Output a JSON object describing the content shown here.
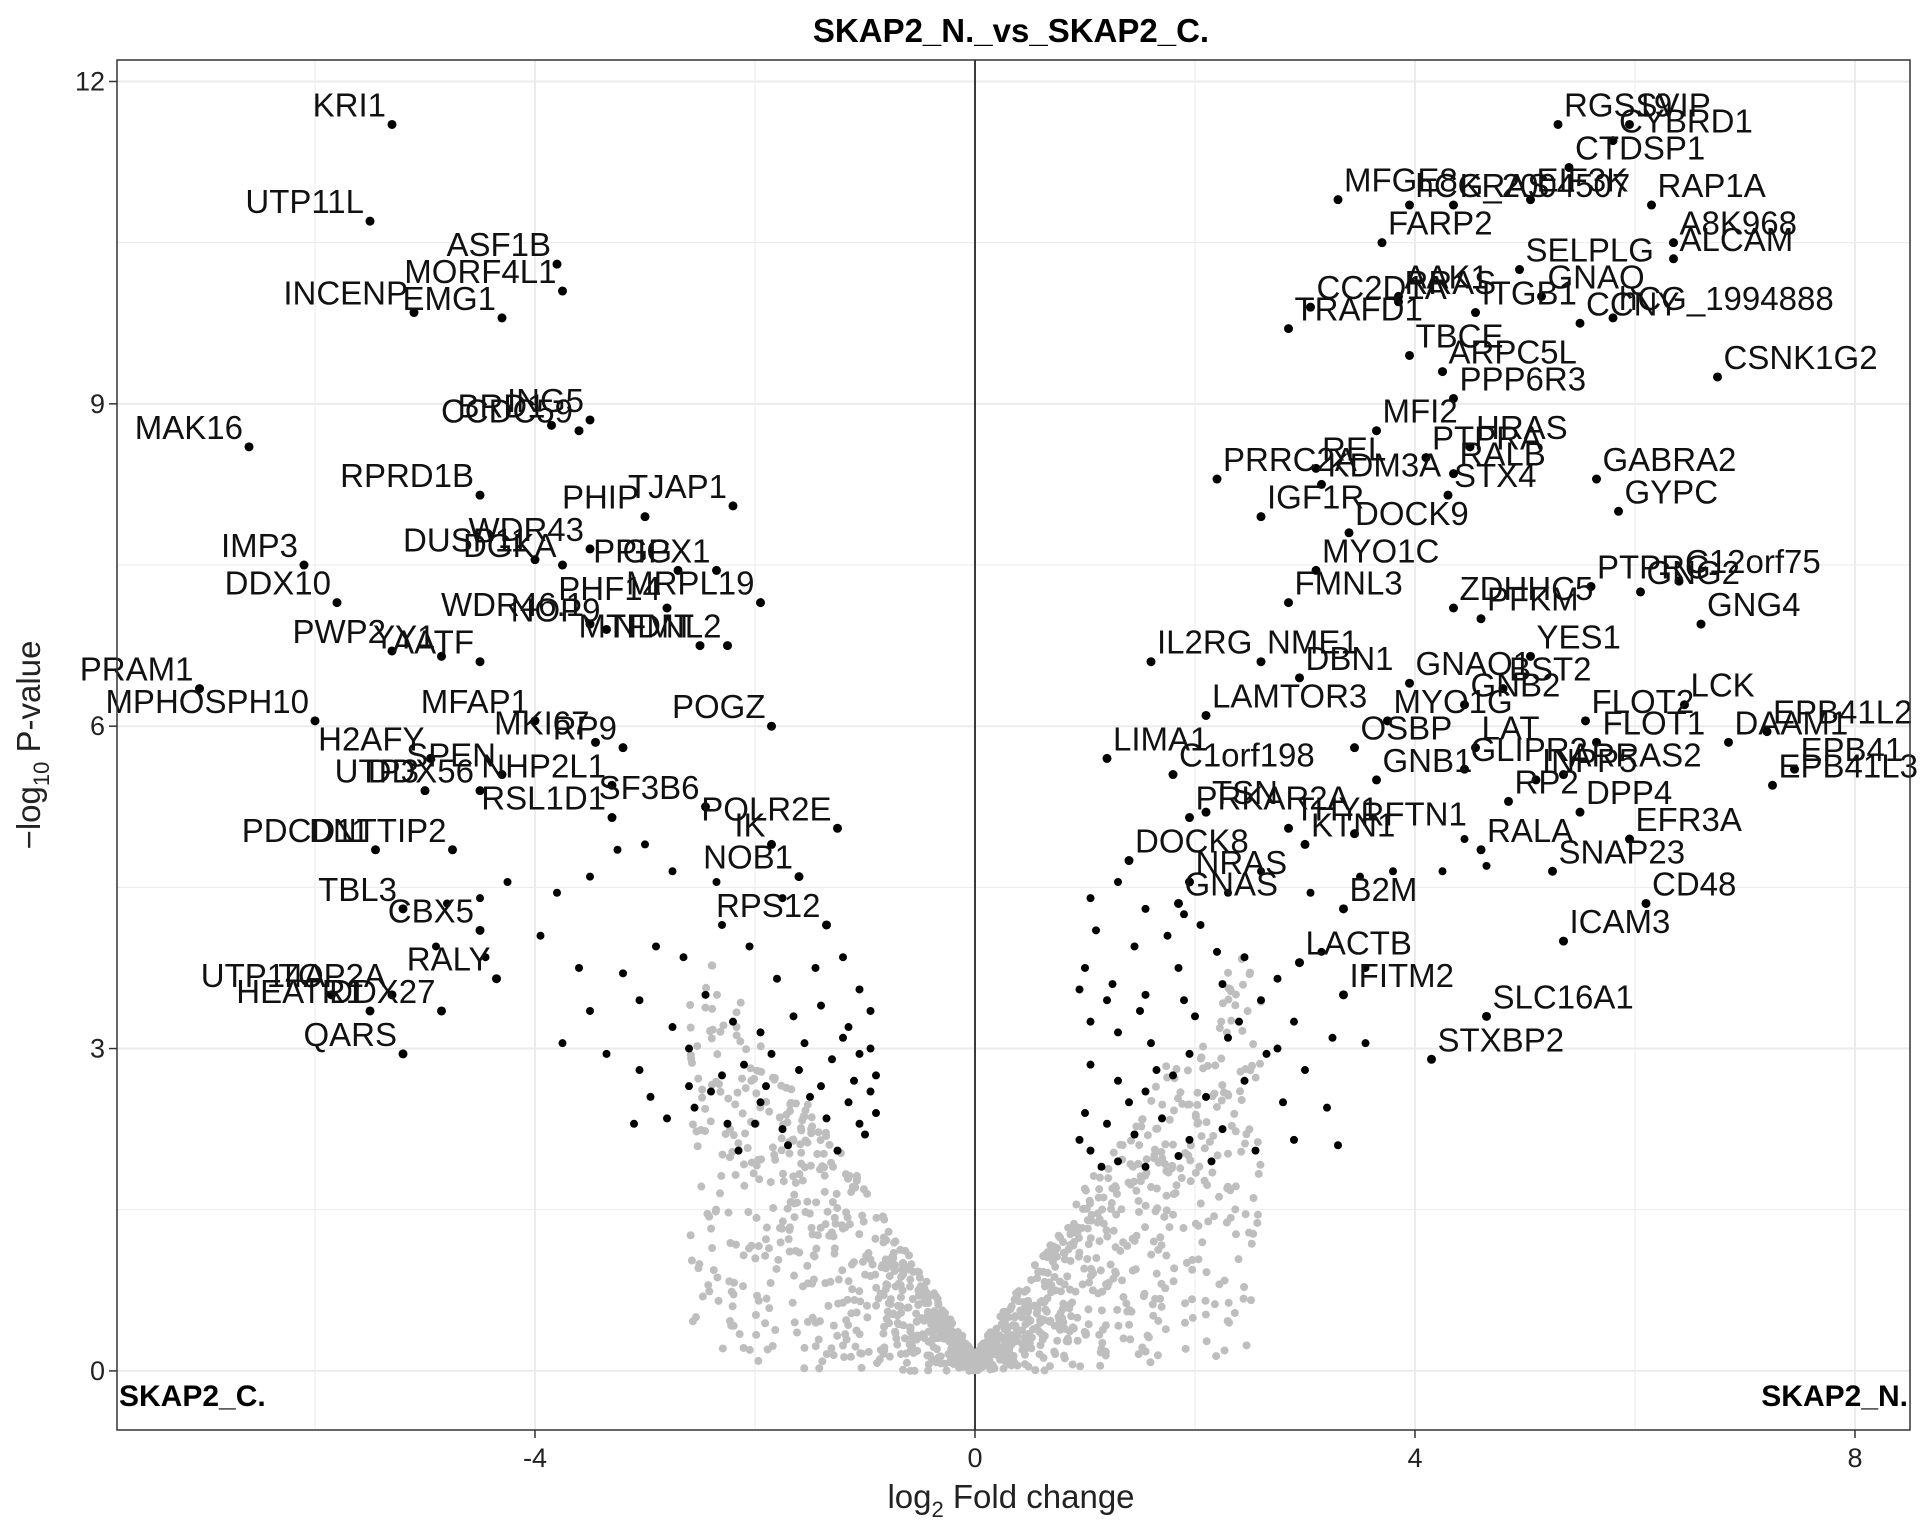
{
  "chart_data": {
    "type": "scatter",
    "title": "SKAP2_N._vs_SKAP2_C.",
    "xlabel_parts": [
      "log",
      "2",
      " Fold change"
    ],
    "ylabel_parts": [
      "−log",
      "10",
      " P-value"
    ],
    "xlim": [
      -7.8,
      8.5
    ],
    "ylim": [
      -0.55,
      12.2
    ],
    "x_ticks": [
      -4,
      0,
      4,
      8
    ],
    "x_tick_labels": [
      "-4",
      "0",
      "4",
      "8"
    ],
    "y_ticks": [
      0,
      3,
      6,
      9,
      12
    ],
    "y_tick_labels": [
      "0",
      "3",
      "6",
      "9",
      "12"
    ],
    "grid": true,
    "theme": "bw",
    "corner_labels": {
      "left": "SKAP2_C.",
      "right": "SKAP2_N."
    },
    "colors": {
      "significant": "#000000",
      "nonsignificant": "#bebebe",
      "grid": "#ebebeb",
      "frame": "#333333"
    },
    "labeled_points": [
      {
        "gene": "KRI1",
        "x": -5.3,
        "y": 11.6
      },
      {
        "gene": "UTP11L",
        "x": -5.5,
        "y": 10.7
      },
      {
        "gene": "ASF1B",
        "x": -3.8,
        "y": 10.3
      },
      {
        "gene": "MORF4L1",
        "x": -3.75,
        "y": 10.05
      },
      {
        "gene": "INCENP",
        "x": -5.1,
        "y": 9.85
      },
      {
        "gene": "EMG1",
        "x": -4.3,
        "y": 9.8
      },
      {
        "gene": "BRD1",
        "x": -3.85,
        "y": 8.8
      },
      {
        "gene": "ING5",
        "x": -3.5,
        "y": 8.85
      },
      {
        "gene": "CCDC59",
        "x": -3.6,
        "y": 8.75
      },
      {
        "gene": "MAK16",
        "x": -6.6,
        "y": 8.6
      },
      {
        "gene": "PHIP",
        "x": -3.0,
        "y": 7.95
      },
      {
        "gene": "TJAP1",
        "x": -2.2,
        "y": 8.05
      },
      {
        "gene": "RPRD1B",
        "x": -4.5,
        "y": 8.15
      },
      {
        "gene": "PPIG",
        "x": -2.7,
        "y": 7.45
      },
      {
        "gene": "DUSP11",
        "x": -4.0,
        "y": 7.55
      },
      {
        "gene": "IMP3",
        "x": -6.1,
        "y": 7.5
      },
      {
        "gene": "DGKA",
        "x": -3.75,
        "y": 7.5
      },
      {
        "gene": "GPX1",
        "x": -2.35,
        "y": 7.45
      },
      {
        "gene": "WDR43",
        "x": -3.5,
        "y": 7.65
      },
      {
        "gene": "DDX10",
        "x": -5.8,
        "y": 7.15
      },
      {
        "gene": "MRPL19",
        "x": -1.95,
        "y": 7.15
      },
      {
        "gene": "PHF14",
        "x": -2.8,
        "y": 7.1
      },
      {
        "gene": "MTFMT",
        "x": -2.5,
        "y": 6.75
      },
      {
        "gene": "PWP2",
        "x": -5.3,
        "y": 6.7
      },
      {
        "gene": "WDR46.1",
        "x": -3.5,
        "y": 6.95
      },
      {
        "gene": "YY1",
        "x": -4.85,
        "y": 6.65
      },
      {
        "gene": "NOP9",
        "x": -3.35,
        "y": 6.9
      },
      {
        "gene": "NDNL2",
        "x": -2.25,
        "y": 6.75
      },
      {
        "gene": "PRAM1",
        "x": -7.05,
        "y": 6.35
      },
      {
        "gene": "AATF",
        "x": -4.5,
        "y": 6.6
      },
      {
        "gene": "MPHOSPH10",
        "x": -6.0,
        "y": 6.05
      },
      {
        "gene": "MFAP1",
        "x": -4.0,
        "y": 6.05
      },
      {
        "gene": "MKI67",
        "x": -3.45,
        "y": 5.85
      },
      {
        "gene": "POGZ",
        "x": -1.85,
        "y": 6.0
      },
      {
        "gene": "H2AFY",
        "x": -4.95,
        "y": 5.7
      },
      {
        "gene": "RP9",
        "x": -3.2,
        "y": 5.8
      },
      {
        "gene": "SPEN",
        "x": -4.3,
        "y": 5.55
      },
      {
        "gene": "NHP2L1",
        "x": -3.3,
        "y": 5.45
      },
      {
        "gene": "UTP3",
        "x": -5.0,
        "y": 5.4
      },
      {
        "gene": "DDX56",
        "x": -4.5,
        "y": 5.4
      },
      {
        "gene": "RSL1D1",
        "x": -3.3,
        "y": 5.15
      },
      {
        "gene": "SF3B6",
        "x": -2.45,
        "y": 5.25
      },
      {
        "gene": "POLR2E",
        "x": -1.25,
        "y": 5.05
      },
      {
        "gene": "PDCD11",
        "x": -5.45,
        "y": 4.85
      },
      {
        "gene": "DNTTIP2",
        "x": -4.75,
        "y": 4.85
      },
      {
        "gene": "IK",
        "x": -1.85,
        "y": 4.9
      },
      {
        "gene": "NOB1",
        "x": -1.6,
        "y": 4.6
      },
      {
        "gene": "TBL3",
        "x": -5.2,
        "y": 4.3
      },
      {
        "gene": "CBX5",
        "x": -4.5,
        "y": 4.1
      },
      {
        "gene": "RPS12",
        "x": -1.35,
        "y": 4.15
      },
      {
        "gene": "UTP14A",
        "x": -5.85,
        "y": 3.5
      },
      {
        "gene": "TOP2A",
        "x": -5.3,
        "y": 3.5
      },
      {
        "gene": "RALY",
        "x": -4.35,
        "y": 3.65
      },
      {
        "gene": "HEATR1",
        "x": -5.5,
        "y": 3.35
      },
      {
        "gene": "DDX27",
        "x": -4.85,
        "y": 3.35
      },
      {
        "gene": "QARS",
        "x": -5.2,
        "y": 2.95
      },
      {
        "gene": "RGS19",
        "x": 5.3,
        "y": 11.6
      },
      {
        "gene": "SVIP",
        "x": 5.95,
        "y": 11.6
      },
      {
        "gene": "CTDSP1",
        "x": 5.4,
        "y": 11.2
      },
      {
        "gene": "CYBRD1",
        "x": 5.8,
        "y": 11.45
      },
      {
        "gene": "MFGE8",
        "x": 3.3,
        "y": 10.9
      },
      {
        "gene": "hCG_2004507",
        "x": 3.95,
        "y": 10.85
      },
      {
        "gene": "EIF3K",
        "x": 5.05,
        "y": 10.9
      },
      {
        "gene": "RAP1A",
        "x": 6.15,
        "y": 10.85
      },
      {
        "gene": "FARP2",
        "x": 3.7,
        "y": 10.5
      },
      {
        "gene": "KRAS",
        "x": 4.35,
        "y": 10.85
      },
      {
        "gene": "A8K968",
        "x": 6.35,
        "y": 10.5
      },
      {
        "gene": "SELPLG",
        "x": 4.95,
        "y": 10.25
      },
      {
        "gene": "AAK1",
        "x": 3.85,
        "y": 10.0
      },
      {
        "gene": "ALCAM",
        "x": 6.35,
        "y": 10.35
      },
      {
        "gene": "GNAQ",
        "x": 5.15,
        "y": 10.0
      },
      {
        "gene": "CC2D1A",
        "x": 3.05,
        "y": 9.9
      },
      {
        "gene": "RRAS",
        "x": 3.85,
        "y": 9.95
      },
      {
        "gene": "ITGB1",
        "x": 4.55,
        "y": 9.85
      },
      {
        "gene": "hCG_1994888",
        "x": 5.8,
        "y": 9.8
      },
      {
        "gene": "TRAFD1",
        "x": 2.85,
        "y": 9.7
      },
      {
        "gene": "CCNY",
        "x": 5.5,
        "y": 9.75
      },
      {
        "gene": "TBCE",
        "x": 3.95,
        "y": 9.45
      },
      {
        "gene": "ARPC5L",
        "x": 4.25,
        "y": 9.3
      },
      {
        "gene": "CSNK1G2",
        "x": 6.75,
        "y": 9.25
      },
      {
        "gene": "MFI2",
        "x": 3.65,
        "y": 8.75
      },
      {
        "gene": "PPP6R3",
        "x": 4.35,
        "y": 9.05
      },
      {
        "gene": "HRAS",
        "x": 4.5,
        "y": 8.6
      },
      {
        "gene": "REL",
        "x": 3.1,
        "y": 8.4
      },
      {
        "gene": "PTPRA",
        "x": 4.1,
        "y": 8.5
      },
      {
        "gene": "RALB",
        "x": 4.35,
        "y": 8.35
      },
      {
        "gene": "GABRA2",
        "x": 5.65,
        "y": 8.3
      },
      {
        "gene": "PRRC2A",
        "x": 2.2,
        "y": 8.3
      },
      {
        "gene": "KDM3A",
        "x": 3.15,
        "y": 8.25
      },
      {
        "gene": "STX4",
        "x": 4.3,
        "y": 8.15
      },
      {
        "gene": "GYPC",
        "x": 5.85,
        "y": 8.0
      },
      {
        "gene": "IGF1R",
        "x": 2.6,
        "y": 7.95
      },
      {
        "gene": "DOCK9",
        "x": 3.4,
        "y": 7.8
      },
      {
        "gene": "PTPRG",
        "x": 5.6,
        "y": 7.3
      },
      {
        "gene": "C12orf75",
        "x": 6.4,
        "y": 7.35
      },
      {
        "gene": "FMNL3",
        "x": 2.85,
        "y": 7.15
      },
      {
        "gene": "MYO1C",
        "x": 3.1,
        "y": 7.45
      },
      {
        "gene": "GNG2",
        "x": 6.05,
        "y": 7.25
      },
      {
        "gene": "PFKM",
        "x": 4.6,
        "y": 7.0
      },
      {
        "gene": "GNG4",
        "x": 6.6,
        "y": 6.95
      },
      {
        "gene": "ZDHHC5",
        "x": 4.35,
        "y": 7.1
      },
      {
        "gene": "NME1",
        "x": 2.6,
        "y": 6.6
      },
      {
        "gene": "YES1",
        "x": 5.05,
        "y": 6.65
      },
      {
        "gene": "GNAO1",
        "x": 3.95,
        "y": 6.4
      },
      {
        "gene": "BST2",
        "x": 4.8,
        "y": 6.35
      },
      {
        "gene": "LCK",
        "x": 6.45,
        "y": 6.2
      },
      {
        "gene": "IL2RG",
        "x": 1.6,
        "y": 6.6
      },
      {
        "gene": "DBN1",
        "x": 2.95,
        "y": 6.45
      },
      {
        "gene": "FLOT2",
        "x": 5.55,
        "y": 6.05
      },
      {
        "gene": "EPB41L2",
        "x": 7.2,
        "y": 5.95
      },
      {
        "gene": "LAMTOR3",
        "x": 2.1,
        "y": 6.1
      },
      {
        "gene": "MYO1G",
        "x": 3.75,
        "y": 6.05
      },
      {
        "gene": "GNB2",
        "x": 4.45,
        "y": 6.2
      },
      {
        "gene": "LAT",
        "x": 4.55,
        "y": 5.8
      },
      {
        "gene": "FLOT1",
        "x": 5.65,
        "y": 5.85
      },
      {
        "gene": "DAAM1",
        "x": 6.85,
        "y": 5.85
      },
      {
        "gene": "LIMA1",
        "x": 1.2,
        "y": 5.7
      },
      {
        "gene": "C1orf198",
        "x": 1.8,
        "y": 5.55
      },
      {
        "gene": "OSBP",
        "x": 3.45,
        "y": 5.8
      },
      {
        "gene": "TSN",
        "x": 2.1,
        "y": 5.2
      },
      {
        "gene": "GLIPR2",
        "x": 4.45,
        "y": 5.6
      },
      {
        "gene": "INPP5",
        "x": 5.1,
        "y": 5.5
      },
      {
        "gene": "ARRAS2",
        "x": 5.35,
        "y": 5.55
      },
      {
        "gene": "EPB41",
        "x": 7.45,
        "y": 5.6
      },
      {
        "gene": "GNB1",
        "x": 3.65,
        "y": 5.5
      },
      {
        "gene": "RP2",
        "x": 4.85,
        "y": 5.3
      },
      {
        "gene": "DPP4",
        "x": 5.5,
        "y": 5.2
      },
      {
        "gene": "EPB41L3",
        "x": 7.25,
        "y": 5.45
      },
      {
        "gene": "PRKAR2A",
        "x": 1.95,
        "y": 5.15
      },
      {
        "gene": "THY1",
        "x": 2.85,
        "y": 5.05
      },
      {
        "gene": "RFTN1",
        "x": 3.45,
        "y": 5.0
      },
      {
        "gene": "RALA",
        "x": 4.6,
        "y": 4.85
      },
      {
        "gene": "EFR3A",
        "x": 5.95,
        "y": 4.95
      },
      {
        "gene": "DOCK8",
        "x": 1.4,
        "y": 4.75
      },
      {
        "gene": "NRAS",
        "x": 1.95,
        "y": 4.55
      },
      {
        "gene": "KTN1",
        "x": 3.0,
        "y": 4.9
      },
      {
        "gene": "SNAP23",
        "x": 5.25,
        "y": 4.65
      },
      {
        "gene": "GNAS",
        "x": 1.85,
        "y": 4.35
      },
      {
        "gene": "B2M",
        "x": 3.35,
        "y": 4.3
      },
      {
        "gene": "CD48",
        "x": 6.1,
        "y": 4.35
      },
      {
        "gene": "ICAM3",
        "x": 5.35,
        "y": 4.0
      },
      {
        "gene": "LACTB",
        "x": 2.95,
        "y": 3.8
      },
      {
        "gene": "IFITM2",
        "x": 3.35,
        "y": 3.5
      },
      {
        "gene": "SLC16A1",
        "x": 4.65,
        "y": 3.3
      },
      {
        "gene": "STXBP2",
        "x": 4.15,
        "y": 2.9
      }
    ],
    "extra_significant_points": [
      [
        -4.25,
        4.55
      ],
      [
        -3.8,
        4.45
      ],
      [
        -3.5,
        4.6
      ],
      [
        -3.0,
        4.9
      ],
      [
        -2.75,
        4.65
      ],
      [
        -2.35,
        4.55
      ],
      [
        -1.75,
        4.4
      ],
      [
        -4.5,
        4.4
      ],
      [
        -4.8,
        4.35
      ],
      [
        -3.25,
        4.85
      ],
      [
        -4.9,
        3.95
      ],
      [
        -4.45,
        3.85
      ],
      [
        -3.95,
        4.05
      ],
      [
        -3.6,
        3.75
      ],
      [
        -3.2,
        3.7
      ],
      [
        -2.9,
        3.95
      ],
      [
        -2.65,
        3.85
      ],
      [
        -2.3,
        4.15
      ],
      [
        -2.05,
        3.95
      ],
      [
        -1.8,
        3.65
      ],
      [
        -1.45,
        3.75
      ],
      [
        -1.2,
        3.85
      ],
      [
        -1.05,
        3.55
      ],
      [
        -3.5,
        3.35
      ],
      [
        -3.05,
        3.45
      ],
      [
        -2.75,
        3.2
      ],
      [
        -2.45,
        3.5
      ],
      [
        -2.2,
        3.25
      ],
      [
        -1.95,
        3.15
      ],
      [
        -1.65,
        3.3
      ],
      [
        -1.4,
        3.4
      ],
      [
        -1.15,
        3.2
      ],
      [
        -0.95,
        3.35
      ],
      [
        -3.75,
        3.05
      ],
      [
        -3.35,
        2.95
      ],
      [
        -3.05,
        2.8
      ],
      [
        -2.6,
        3.0
      ],
      [
        -2.3,
        2.75
      ],
      [
        -2.1,
        2.85
      ],
      [
        -1.85,
        2.95
      ],
      [
        -1.6,
        2.8
      ],
      [
        -1.3,
        2.9
      ],
      [
        -1.05,
        2.95
      ],
      [
        -0.9,
        2.75
      ],
      [
        -2.8,
        2.35
      ],
      [
        -2.55,
        2.45
      ],
      [
        -2.25,
        2.3
      ],
      [
        -1.95,
        2.5
      ],
      [
        -1.75,
        2.25
      ],
      [
        -1.5,
        2.55
      ],
      [
        -1.35,
        2.35
      ],
      [
        -1.15,
        2.5
      ],
      [
        -1.0,
        2.2
      ],
      [
        -0.9,
        2.4
      ],
      [
        -3.1,
        2.3
      ],
      [
        -2.6,
        2.65
      ],
      [
        -2.15,
        2.05
      ],
      [
        -1.7,
        2.1
      ],
      [
        -1.25,
        2.05
      ],
      [
        -1.05,
        2.3
      ],
      [
        -0.95,
        3.0
      ],
      [
        -1.2,
        3.1
      ],
      [
        -1.55,
        3.05
      ],
      [
        -1.9,
        2.65
      ],
      [
        -2.4,
        2.6
      ],
      [
        -0.95,
        2.6
      ],
      [
        -1.1,
        2.7
      ],
      [
        -1.4,
        2.65
      ],
      [
        -2.95,
        2.55
      ],
      [
        -2.0,
        2.3
      ],
      [
        1.05,
        4.4
      ],
      [
        1.3,
        4.55
      ],
      [
        1.55,
        4.3
      ],
      [
        1.9,
        4.25
      ],
      [
        2.3,
        4.45
      ],
      [
        2.6,
        4.65
      ],
      [
        3.05,
        4.45
      ],
      [
        3.5,
        4.6
      ],
      [
        3.8,
        4.65
      ],
      [
        4.25,
        4.65
      ],
      [
        4.45,
        4.95
      ],
      [
        4.65,
        4.7
      ],
      [
        1.1,
        4.1
      ],
      [
        1.45,
        3.95
      ],
      [
        1.75,
        4.05
      ],
      [
        2.05,
        4.15
      ],
      [
        2.45,
        3.85
      ],
      [
        2.75,
        3.65
      ],
      [
        3.15,
        3.9
      ],
      [
        3.55,
        3.75
      ],
      [
        1.0,
        3.75
      ],
      [
        1.25,
        3.6
      ],
      [
        1.55,
        3.5
      ],
      [
        1.9,
        3.45
      ],
      [
        2.25,
        3.6
      ],
      [
        2.6,
        3.45
      ],
      [
        2.9,
        3.25
      ],
      [
        3.25,
        3.1
      ],
      [
        3.55,
        3.05
      ],
      [
        1.05,
        3.25
      ],
      [
        1.3,
        3.15
      ],
      [
        1.6,
        3.05
      ],
      [
        1.95,
        2.95
      ],
      [
        2.3,
        3.1
      ],
      [
        2.65,
        2.95
      ],
      [
        3.0,
        2.8
      ],
      [
        1.05,
        2.85
      ],
      [
        1.3,
        2.7
      ],
      [
        1.55,
        2.6
      ],
      [
        1.8,
        2.75
      ],
      [
        2.1,
        2.55
      ],
      [
        2.45,
        2.7
      ],
      [
        2.8,
        2.5
      ],
      [
        3.2,
        2.45
      ],
      [
        1.0,
        2.4
      ],
      [
        1.2,
        2.3
      ],
      [
        1.45,
        2.2
      ],
      [
        1.7,
        2.35
      ],
      [
        1.95,
        2.15
      ],
      [
        2.25,
        2.25
      ],
      [
        2.55,
        2.05
      ],
      [
        2.9,
        2.15
      ],
      [
        3.3,
        2.1
      ],
      [
        1.05,
        2.05
      ],
      [
        1.3,
        1.95
      ],
      [
        1.55,
        1.9
      ],
      [
        1.85,
        2.0
      ],
      [
        2.15,
        1.95
      ],
      [
        0.95,
        2.15
      ],
      [
        1.15,
        1.9
      ],
      [
        1.4,
        2.5
      ],
      [
        1.65,
        2.8
      ],
      [
        2.0,
        3.3
      ],
      [
        2.4,
        3.25
      ],
      [
        2.75,
        3.0
      ],
      [
        1.2,
        3.45
      ],
      [
        1.5,
        3.35
      ],
      [
        1.85,
        3.75
      ],
      [
        2.2,
        3.9
      ],
      [
        0.95,
        3.55
      ]
    ],
    "nonsignificant_cloud": {
      "description_count": 1300,
      "seed": 7
    }
  }
}
